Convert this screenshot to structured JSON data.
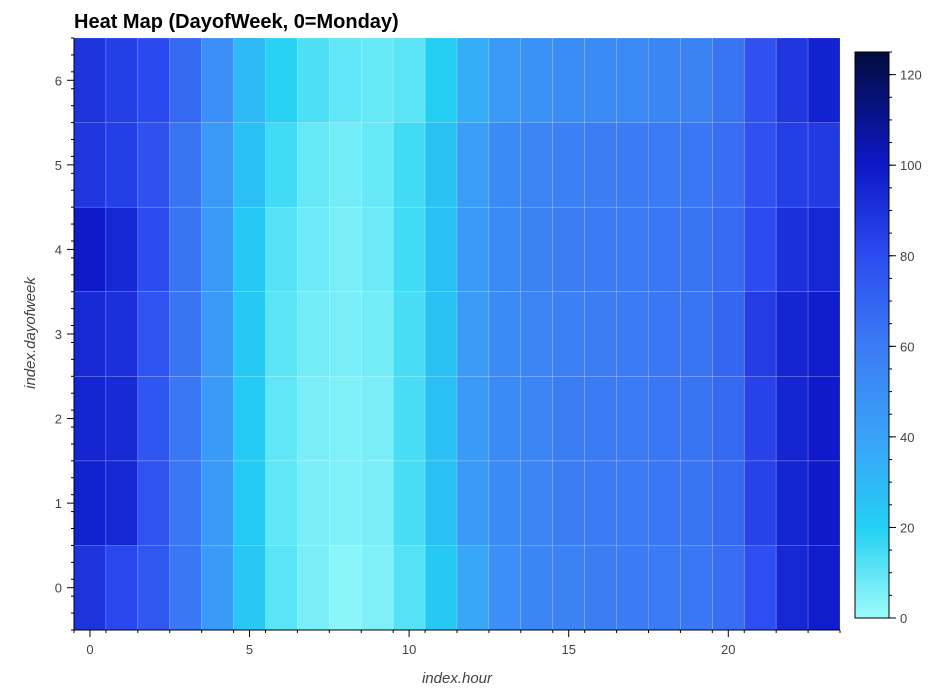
{
  "chart_data": {
    "type": "heatmap",
    "title": "Heat Map (DayofWeek, 0=Monday)",
    "xlabel": "index.hour",
    "ylabel": "index.dayofweek",
    "x": [
      0,
      1,
      2,
      3,
      4,
      5,
      6,
      7,
      8,
      9,
      10,
      11,
      12,
      13,
      14,
      15,
      16,
      17,
      18,
      19,
      20,
      21,
      22,
      23
    ],
    "y": [
      0,
      1,
      2,
      3,
      4,
      5,
      6
    ],
    "xlim": [
      -0.5,
      23.5
    ],
    "ylim": [
      -0.5,
      6.5
    ],
    "x_ticks": [
      0,
      5,
      10,
      15,
      20
    ],
    "y_ticks": [
      0,
      1,
      2,
      3,
      4,
      5,
      6
    ],
    "colorbar": {
      "min": 0,
      "max": 125,
      "ticks": [
        0,
        20,
        40,
        60,
        80,
        100,
        120
      ],
      "placement": "right"
    },
    "colormap": [
      {
        "v": 0,
        "color": "#9ffbfa"
      },
      {
        "v": 20,
        "color": "#23d0f3"
      },
      {
        "v": 40,
        "color": "#3aa2f8"
      },
      {
        "v": 60,
        "color": "#3b7cf4"
      },
      {
        "v": 80,
        "color": "#2c4cf0"
      },
      {
        "v": 100,
        "color": "#0d18c8"
      },
      {
        "v": 125,
        "color": "#020c3e"
      }
    ],
    "values": [
      [
        89,
        82,
        75,
        62,
        44,
        24,
        11,
        6,
        3,
        5,
        12,
        23,
        38,
        50,
        55,
        57,
        59,
        60,
        61,
        62,
        66,
        79,
        94,
        98
      ],
      [
        96,
        94,
        77,
        62,
        44,
        22,
        10,
        6,
        5,
        6,
        14,
        27,
        44,
        52,
        56,
        59,
        60,
        61,
        62,
        63,
        68,
        84,
        95,
        99
      ],
      [
        95,
        93,
        76,
        62,
        44,
        22,
        10,
        6,
        5,
        6,
        14,
        27,
        44,
        52,
        56,
        59,
        60,
        61,
        62,
        63,
        68,
        84,
        95,
        99
      ],
      [
        93,
        91,
        77,
        63,
        45,
        23,
        11,
        7,
        6,
        7,
        14,
        26,
        43,
        52,
        56,
        58,
        59,
        61,
        62,
        63,
        69,
        86,
        95,
        98
      ],
      [
        99,
        94,
        80,
        63,
        45,
        23,
        12,
        8,
        6,
        8,
        15,
        27,
        44,
        53,
        57,
        59,
        60,
        61,
        62,
        63,
        67,
        80,
        91,
        94
      ],
      [
        88,
        85,
        78,
        63,
        45,
        27,
        15,
        9,
        7,
        9,
        15,
        26,
        42,
        52,
        56,
        58,
        59,
        60,
        61,
        62,
        66,
        78,
        85,
        87
      ],
      [
        89,
        85,
        81,
        68,
        50,
        30,
        19,
        13,
        10,
        9,
        11,
        21,
        35,
        45,
        49,
        51,
        52,
        53,
        55,
        57,
        63,
        78,
        88,
        96
      ]
    ]
  }
}
